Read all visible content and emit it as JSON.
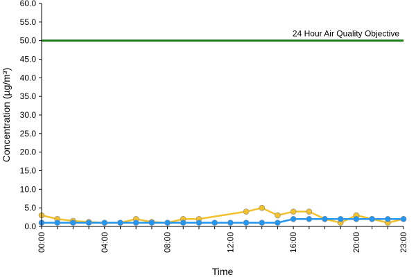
{
  "chart_data": {
    "type": "line",
    "xlabel": "Time",
    "ylabel": "Concentration (µg/m³)",
    "ylim": [
      0,
      60
    ],
    "y_ticks": [
      "0.0",
      "5.0",
      "10.0",
      "15.0",
      "20.0",
      "25.0",
      "30.0",
      "35.0",
      "40.0",
      "45.0",
      "50.0",
      "55.0",
      "60.0"
    ],
    "x_tick_labels": [
      "00:00",
      "04:00",
      "08:00",
      "12:00",
      "16:00",
      "20:00",
      "23:00"
    ],
    "x_tick_hours": [
      0,
      4,
      8,
      12,
      16,
      20,
      23
    ],
    "grid": false,
    "legend": "none",
    "series": [
      {
        "color": "#f2c12e",
        "x": [
          0,
          1,
          2,
          3,
          4,
          5,
          6,
          7,
          8,
          9,
          10,
          13,
          14,
          15,
          16,
          17,
          18,
          19,
          20,
          21,
          22,
          23
        ],
        "values": [
          3,
          2,
          1.5,
          1.2,
          1,
          1,
          2,
          1.2,
          1,
          2,
          2,
          4,
          5,
          3,
          4,
          4,
          2,
          1,
          3,
          2,
          1,
          2
        ]
      },
      {
        "color": "#2196f3",
        "x": [
          0,
          1,
          2,
          3,
          4,
          5,
          6,
          7,
          8,
          9,
          10,
          11,
          12,
          13,
          14,
          15,
          16,
          17,
          18,
          19,
          20,
          21,
          22,
          23
        ],
        "values": [
          1,
          1,
          1,
          1,
          1,
          1,
          1,
          1,
          1,
          1,
          1,
          1,
          1,
          1,
          1,
          1,
          2,
          2,
          2,
          2,
          2,
          2,
          2,
          2
        ]
      }
    ],
    "reference_line": {
      "value": 50,
      "label": "24 Hour Air Quality Objective",
      "color": "#1a7a1a"
    }
  }
}
